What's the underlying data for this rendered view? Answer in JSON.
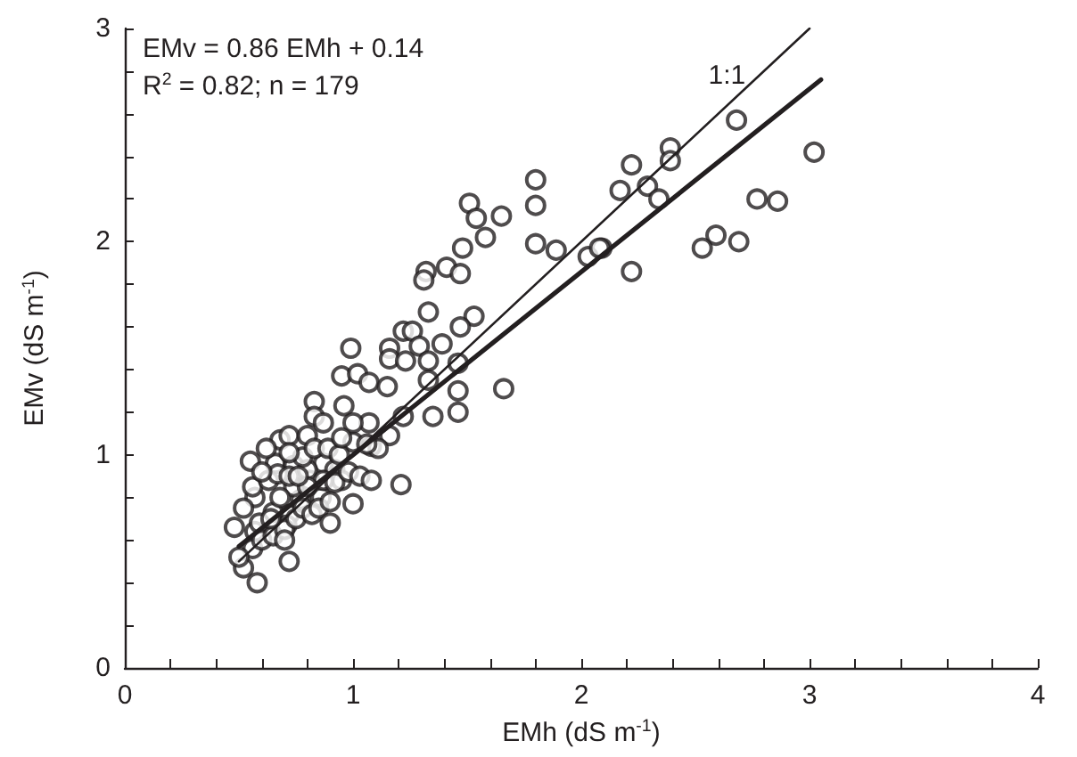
{
  "chart_data": {
    "type": "scatter",
    "xlabel": "EMh (dS m$^{-1}$)",
    "ylabel": "EMv (dS m$^{-1}$)",
    "annotations": [
      "EMv = 0.86 EMh + 0.14",
      "R$^{2}$ = 0.82; n = 179",
      {
        "text": "1:1",
        "x": 2.72,
        "y": 2.78
      }
    ],
    "xlim": [
      0,
      4
    ],
    "ylim": [
      0,
      3
    ],
    "xticks": [
      0,
      {
        "value": 0.2,
        "label": null
      },
      {
        "value": 0.4,
        "label": null
      },
      {
        "value": 0.6,
        "label": null
      },
      {
        "value": 0.8,
        "label": null
      },
      1,
      {
        "value": 1.2,
        "label": null
      },
      {
        "value": 1.4,
        "label": null
      },
      {
        "value": 1.6,
        "label": null
      },
      {
        "value": 1.8,
        "label": null
      },
      2,
      {
        "value": 2.2,
        "label": null
      },
      {
        "value": 2.4,
        "label": null
      },
      {
        "value": 2.6,
        "label": null
      },
      {
        "value": 2.8,
        "label": null
      },
      3,
      {
        "value": 3.2,
        "label": null
      },
      {
        "value": 3.4,
        "label": null
      },
      {
        "value": 3.6,
        "label": null
      },
      {
        "value": 3.8,
        "label": null
      },
      4
    ],
    "yticks": [
      0,
      {
        "value": 0.2,
        "label": null
      },
      {
        "value": 0.4,
        "label": null
      },
      {
        "value": 0.6,
        "label": null
      },
      {
        "value": 0.8,
        "label": null
      },
      1,
      {
        "value": 1.2,
        "label": null
      },
      {
        "value": 1.4,
        "label": null
      },
      {
        "value": 1.6,
        "label": null
      },
      {
        "value": 1.8,
        "label": null
      },
      2,
      {
        "value": 2.2,
        "label": null
      },
      {
        "value": 2.4,
        "label": null
      },
      {
        "value": 2.6,
        "label": null
      },
      {
        "value": 2.8,
        "label": null
      },
      3
    ],
    "grid": false,
    "series": [
      {
        "marker": "circle",
        "color": "#231f20",
        "x": [
          2.68,
          3.02,
          2.39,
          2.39,
          2.22,
          2.17,
          2.29,
          2.34,
          2.77,
          2.86,
          2.59,
          2.53,
          2.69,
          2.09,
          2.22,
          1.8,
          1.8,
          1.8,
          1.89,
          2.03,
          2.08,
          1.51,
          1.54,
          1.65,
          1.58,
          1.48,
          1.41,
          1.32,
          1.47,
          1.31,
          1.33,
          1.53,
          1.47,
          1.22,
          1.26,
          1.39,
          0.99,
          1.16,
          1.29,
          1.16,
          1.23,
          1.33,
          1.46,
          0.95,
          1.02,
          1.07,
          1.15,
          1.33,
          1.46,
          1.66,
          0.96,
          1.22,
          1.35,
          1.46,
          1.07,
          1.16,
          1.0,
          1.08,
          1.11,
          0.83,
          0.83,
          0.87,
          1.0,
          1.06,
          1.21,
          1.0,
          0.55,
          0.68,
          0.72,
          0.8,
          0.66,
          0.74,
          0.87,
          0.92,
          0.95,
          0.86,
          0.72,
          0.65,
          0.57,
          0.56,
          0.52,
          0.48,
          0.57,
          0.56,
          0.71,
          0.59,
          0.77,
          0.81,
          0.63,
          0.67,
          0.74,
          0.8,
          0.87,
          0.92,
          0.78,
          0.83,
          0.89,
          0.72,
          0.62,
          0.52,
          0.58,
          0.5,
          0.6,
          0.65,
          0.7,
          0.75,
          0.78,
          0.82,
          0.85,
          0.9,
          0.68,
          0.72,
          0.6,
          0.64,
          0.8,
          0.76,
          0.94,
          0.98,
          1.03,
          1.08,
          0.7,
          0.72,
          0.9,
          0.95
        ],
        "values": [
          2.57,
          2.42,
          2.44,
          2.38,
          2.36,
          2.24,
          2.26,
          2.2,
          2.2,
          2.19,
          2.03,
          1.97,
          2.0,
          1.97,
          1.86,
          2.29,
          2.17,
          1.99,
          1.96,
          1.93,
          1.97,
          2.18,
          2.11,
          2.12,
          2.02,
          1.97,
          1.88,
          1.86,
          1.85,
          1.82,
          1.67,
          1.65,
          1.6,
          1.58,
          1.58,
          1.52,
          1.5,
          1.5,
          1.51,
          1.45,
          1.44,
          1.44,
          1.43,
          1.37,
          1.38,
          1.34,
          1.32,
          1.35,
          1.3,
          1.31,
          1.23,
          1.18,
          1.18,
          1.2,
          1.15,
          1.09,
          1.06,
          1.04,
          1.03,
          1.25,
          1.18,
          1.15,
          1.15,
          1.05,
          0.86,
          0.77,
          0.97,
          1.07,
          1.09,
          1.09,
          0.96,
          0.95,
          0.96,
          0.93,
          0.88,
          0.8,
          0.72,
          0.73,
          0.8,
          0.85,
          0.75,
          0.66,
          0.64,
          0.56,
          0.67,
          0.68,
          0.79,
          0.88,
          0.88,
          0.91,
          0.85,
          0.93,
          0.88,
          0.87,
          0.99,
          1.03,
          1.03,
          1.01,
          1.03,
          0.47,
          0.4,
          0.52,
          0.6,
          0.62,
          0.65,
          0.7,
          0.75,
          0.72,
          0.75,
          0.78,
          0.8,
          0.9,
          0.92,
          0.7,
          0.85,
          0.9,
          1.0,
          0.92,
          0.9,
          0.88,
          0.6,
          0.5,
          0.68,
          1.08
        ]
      },
      {
        "type": "line",
        "marker": "none",
        "line_style": "solid",
        "color": "#231f20",
        "x": [
          0.5,
          3.05
        ],
        "values": [
          0.57,
          2.76
        ]
      },
      {
        "type": "line",
        "marker": "none",
        "line_style": "solid",
        "color": "#231f20",
        "x": [
          0.5,
          3.0
        ],
        "values": [
          0.5,
          3.0
        ]
      }
    ]
  }
}
